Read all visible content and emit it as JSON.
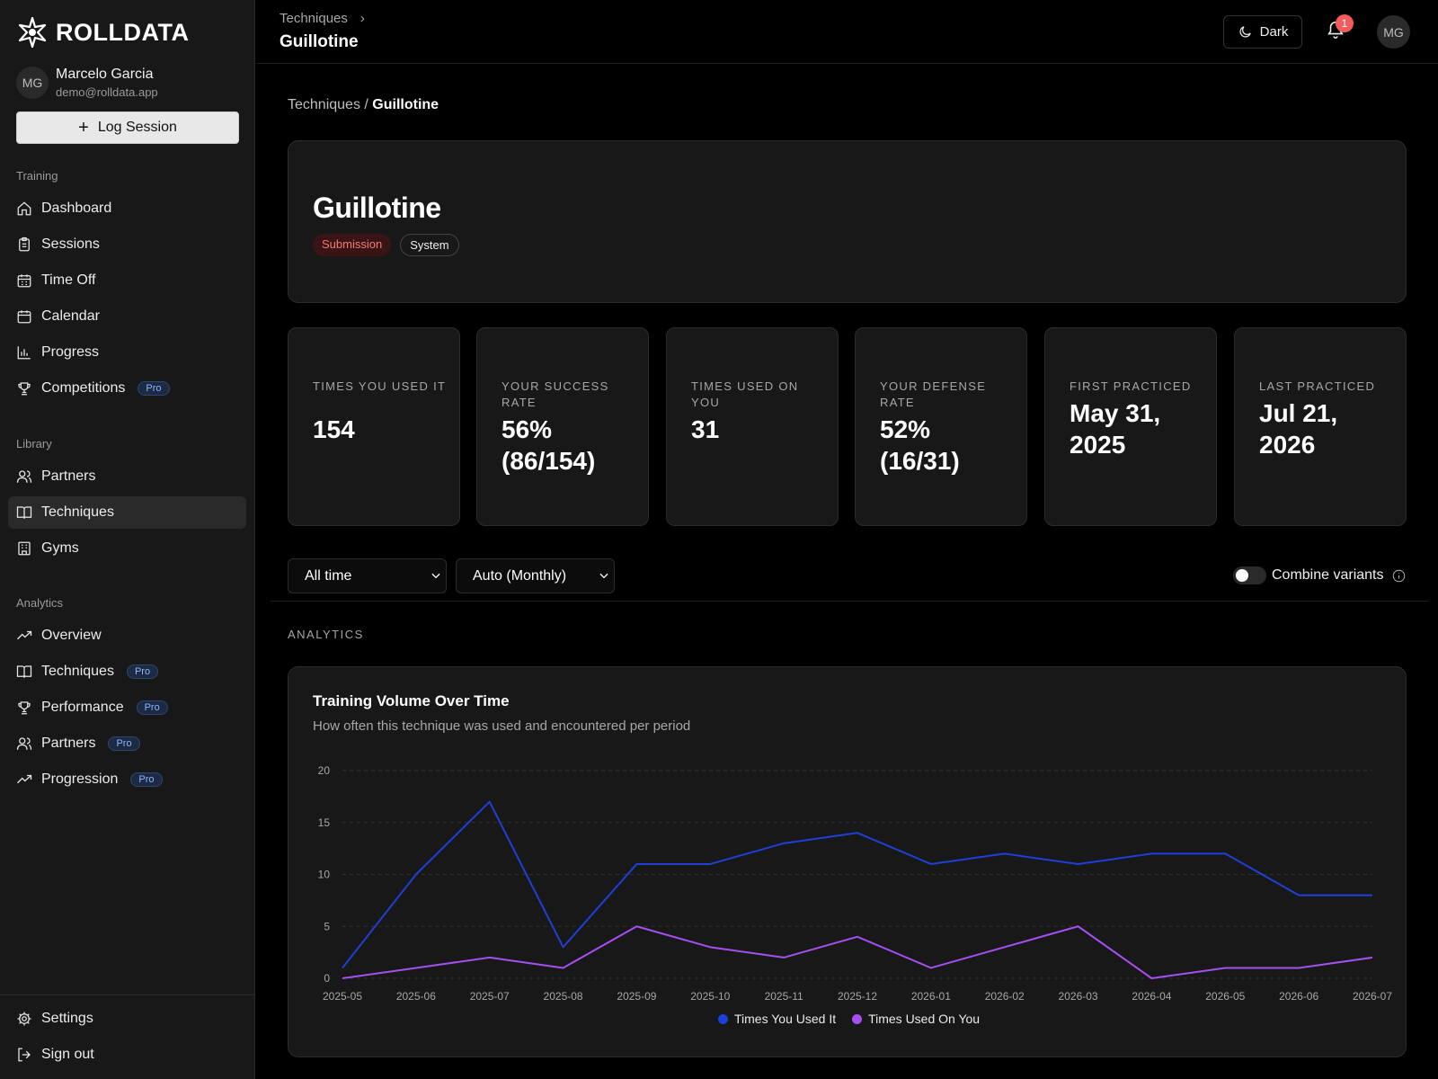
{
  "brand": {
    "name": "ROLLDATA"
  },
  "user": {
    "initials": "MG",
    "name": "Marcelo Garcia",
    "email": "demo@rolldata.app"
  },
  "sidebar": {
    "log_session_label": "Log Session",
    "sections": {
      "training": "Training",
      "library": "Library",
      "analytics": "Analytics"
    },
    "training_items": [
      {
        "label": "Dashboard",
        "icon": "home-icon"
      },
      {
        "label": "Sessions",
        "icon": "clipboard-icon"
      },
      {
        "label": "Time Off",
        "icon": "calendar-off-icon"
      },
      {
        "label": "Calendar",
        "icon": "calendar-icon"
      },
      {
        "label": "Progress",
        "icon": "bar-chart-icon"
      },
      {
        "label": "Competitions",
        "icon": "trophy-icon",
        "badge": "Pro"
      }
    ],
    "library_items": [
      {
        "label": "Partners",
        "icon": "users-icon"
      },
      {
        "label": "Techniques",
        "icon": "book-icon",
        "active": true
      },
      {
        "label": "Gyms",
        "icon": "building-icon"
      }
    ],
    "analytics_items": [
      {
        "label": "Overview",
        "icon": "trend-icon"
      },
      {
        "label": "Techniques",
        "icon": "book-icon",
        "badge": "Pro"
      },
      {
        "label": "Performance",
        "icon": "trophy-icon",
        "badge": "Pro"
      },
      {
        "label": "Partners",
        "icon": "users-icon",
        "badge": "Pro"
      },
      {
        "label": "Progression",
        "icon": "trend-icon",
        "badge": "Pro"
      }
    ],
    "footer_items": [
      {
        "label": "Settings",
        "icon": "gear-icon"
      },
      {
        "label": "Sign out",
        "icon": "logout-icon"
      }
    ]
  },
  "topbar": {
    "breadcrumb_parent": "Techniques",
    "title": "Guillotine",
    "theme_label": "Dark",
    "notification_count": "1",
    "avatar_initials": "MG"
  },
  "page": {
    "breadcrumb_parent": "Techniques",
    "breadcrumb_sep": " / ",
    "breadcrumb_current": "Guillotine",
    "technique_name": "Guillotine",
    "tags": [
      "Submission",
      "System"
    ]
  },
  "stats": [
    {
      "label": "Times You Used It",
      "value": "154"
    },
    {
      "label": "Your Success Rate",
      "value": "56% (86/154)"
    },
    {
      "label": "Times Used On You",
      "value": "31"
    },
    {
      "label": "Your Defense Rate",
      "value": "52% (16/31)"
    },
    {
      "label": "First Practiced",
      "value": "May 31, 2025"
    },
    {
      "label": "Last Practiced",
      "value": "Jul 21, 2026"
    }
  ],
  "filters": {
    "range_value": "All time",
    "interval_value": "Auto (Monthly)",
    "combine_label": "Combine variants",
    "combine_on": false
  },
  "analytics_heading": "ANALYTICS",
  "chart_data": {
    "type": "line",
    "title": "Training Volume Over Time",
    "subtitle": "How often this technique was used and encountered per period",
    "x": [
      "2025-05",
      "2025-06",
      "2025-07",
      "2025-08",
      "2025-09",
      "2025-10",
      "2025-11",
      "2025-12",
      "2026-01",
      "2026-02",
      "2026-03",
      "2026-04",
      "2026-05",
      "2026-06",
      "2026-07"
    ],
    "series": [
      {
        "name": "Times You Used It",
        "color": "#1f3fd9",
        "values": [
          1,
          10,
          17,
          3,
          11,
          11,
          13,
          14,
          11,
          12,
          11,
          12,
          12,
          8,
          8
        ]
      },
      {
        "name": "Times Used On You",
        "color": "#a64ff0",
        "values": [
          0,
          1,
          2,
          1,
          5,
          3,
          2,
          4,
          1,
          3,
          5,
          0,
          1,
          1,
          2
        ]
      }
    ],
    "ylim": [
      0,
      20
    ],
    "yticks": [
      0,
      5,
      10,
      15,
      20
    ],
    "grid": true,
    "legend_position": "bottom"
  }
}
